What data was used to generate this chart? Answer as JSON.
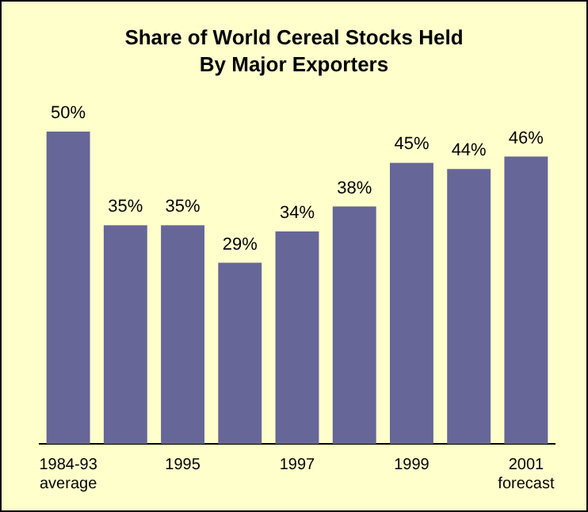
{
  "chart_data": {
    "type": "bar",
    "title": "Share of World Cereal Stocks Held By Major Exporters",
    "categories": [
      "1984-93 average",
      null,
      "1995",
      null,
      "1997",
      null,
      "1999",
      null,
      "2001 forecast"
    ],
    "values": [
      50,
      35,
      35,
      29,
      34,
      38,
      45,
      44,
      46
    ],
    "value_labels": [
      "50%",
      "35%",
      "35%",
      "29%",
      "34%",
      "38%",
      "45%",
      "44%",
      "46%"
    ],
    "color": "#666699",
    "tick_labels": "x",
    "grid": false,
    "legend": false
  }
}
